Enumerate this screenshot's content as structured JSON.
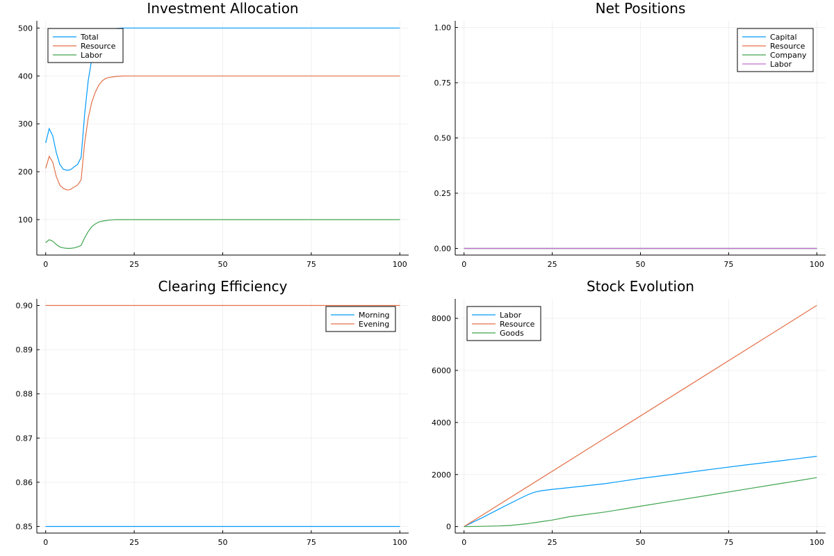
{
  "palette": [
    "#009AFA",
    "#E36F47",
    "#3EA44E",
    "#C371D2"
  ],
  "chart_data": [
    {
      "type": "line",
      "title": "Investment Allocation",
      "xlim": [
        -2.5,
        102.5
      ],
      "ylim": [
        26,
        515
      ],
      "xticks": [
        0,
        25,
        50,
        75,
        100
      ],
      "yticks": [
        100,
        200,
        300,
        400,
        500
      ],
      "ytick_labels": [
        "100",
        "200",
        "300",
        "400",
        "500"
      ],
      "grid": true,
      "legend": "top-left",
      "series": [
        {
          "name": "Total",
          "x": [
            0,
            1,
            2,
            3,
            4,
            5,
            6,
            7,
            8,
            9,
            10,
            11,
            12,
            13,
            14,
            15,
            16,
            17,
            18,
            19,
            20,
            22,
            25,
            30,
            50,
            75,
            100
          ],
          "y": [
            260,
            290,
            275,
            240,
            215,
            205,
            203,
            204,
            210,
            215,
            230,
            320,
            390,
            435,
            462,
            480,
            490,
            495,
            497,
            498,
            499,
            500,
            500,
            500,
            500,
            500,
            500
          ]
        },
        {
          "name": "Resource",
          "x": [
            0,
            1,
            2,
            3,
            4,
            5,
            6,
            7,
            8,
            9,
            10,
            11,
            12,
            13,
            14,
            15,
            16,
            17,
            18,
            19,
            20,
            22,
            25,
            30,
            50,
            75,
            100
          ],
          "y": [
            207,
            232,
            220,
            190,
            172,
            165,
            162,
            163,
            168,
            172,
            183,
            260,
            312,
            345,
            366,
            381,
            390,
            395,
            397,
            398,
            399,
            400,
            400,
            400,
            400,
            400,
            400
          ]
        },
        {
          "name": "Labor",
          "x": [
            0,
            1,
            2,
            3,
            4,
            5,
            6,
            7,
            8,
            9,
            10,
            11,
            12,
            13,
            14,
            15,
            16,
            17,
            18,
            19,
            20,
            22,
            25,
            30,
            50,
            75,
            100
          ],
          "y": [
            52,
            58,
            55,
            48,
            43,
            41,
            40,
            40,
            41,
            43,
            46,
            62,
            75,
            85,
            91,
            95,
            97,
            98,
            99,
            99.5,
            100,
            100,
            100,
            100,
            100,
            100,
            100
          ]
        }
      ]
    },
    {
      "type": "line",
      "title": "Net Positions",
      "xlim": [
        -2.5,
        102.5
      ],
      "ylim": [
        -0.03,
        1.03
      ],
      "xticks": [
        0,
        25,
        50,
        75,
        100
      ],
      "yticks": [
        0,
        0.25,
        0.5,
        0.75,
        1.0
      ],
      "ytick_labels": [
        "0.00",
        "0.25",
        "0.50",
        "0.75",
        "1.00"
      ],
      "grid": true,
      "legend": "top-right",
      "series": [
        {
          "name": "Capital",
          "x": [
            0,
            100
          ],
          "y": [
            0,
            0
          ]
        },
        {
          "name": "Resource",
          "x": [
            0,
            100
          ],
          "y": [
            0,
            0
          ]
        },
        {
          "name": "Company",
          "x": [
            0,
            100
          ],
          "y": [
            0,
            0
          ]
        },
        {
          "name": "Labor",
          "x": [
            0,
            100
          ],
          "y": [
            0,
            0
          ]
        }
      ]
    },
    {
      "type": "line",
      "title": "Clearing Efficiency",
      "xlim": [
        -2.5,
        102.5
      ],
      "ylim": [
        0.8485,
        0.9015
      ],
      "xticks": [
        0,
        25,
        50,
        75,
        100
      ],
      "yticks": [
        0.85,
        0.86,
        0.87,
        0.88,
        0.89,
        0.9
      ],
      "ytick_labels": [
        "0.85",
        "0.86",
        "0.87",
        "0.88",
        "0.89",
        "0.90"
      ],
      "grid": true,
      "legend": "top-right",
      "series": [
        {
          "name": "Morning",
          "x": [
            0,
            100
          ],
          "y": [
            0.85,
            0.85
          ]
        },
        {
          "name": "Evening",
          "x": [
            0,
            100
          ],
          "y": [
            0.9,
            0.9
          ]
        }
      ]
    },
    {
      "type": "line",
      "title": "Stock Evolution",
      "xlim": [
        -2.5,
        102.5
      ],
      "ylim": [
        -250,
        8750
      ],
      "xticks": [
        0,
        25,
        50,
        75,
        100
      ],
      "yticks": [
        0,
        2000,
        4000,
        6000,
        8000
      ],
      "ytick_labels": [
        "0",
        "2000",
        "4000",
        "6000",
        "8000"
      ],
      "grid": true,
      "legend": "top-left",
      "series": [
        {
          "name": "Labor",
          "x": [
            0,
            5,
            10,
            15,
            18,
            20,
            22,
            25,
            30,
            40,
            50,
            60,
            70,
            80,
            90,
            100
          ],
          "y": [
            0,
            330,
            680,
            1020,
            1220,
            1320,
            1380,
            1430,
            1500,
            1650,
            1850,
            2020,
            2200,
            2370,
            2530,
            2700
          ]
        },
        {
          "name": "Resource",
          "x": [
            0,
            100
          ],
          "y": [
            0,
            8500
          ]
        },
        {
          "name": "Goods",
          "x": [
            0,
            5,
            10,
            13,
            15,
            18,
            20,
            22,
            25,
            30,
            40,
            50,
            60,
            70,
            80,
            90,
            100
          ],
          "y": [
            0,
            10,
            25,
            45,
            70,
            110,
            150,
            190,
            250,
            380,
            560,
            780,
            1000,
            1220,
            1440,
            1660,
            1880
          ]
        }
      ]
    }
  ]
}
